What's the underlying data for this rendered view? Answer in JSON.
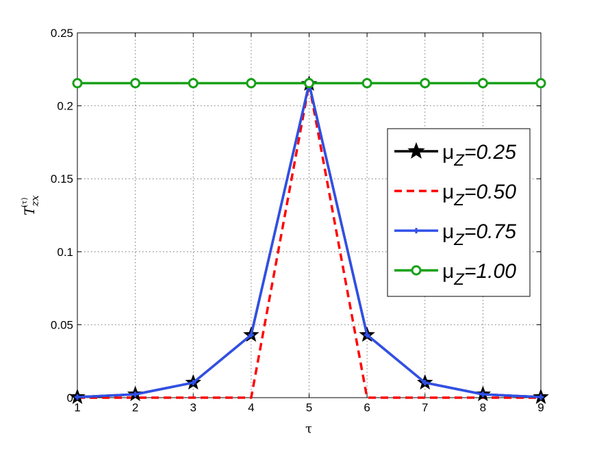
{
  "chart_data": {
    "type": "line",
    "title": "",
    "xlabel": "τ",
    "ylabel_main": "T",
    "ylabel_sub": "zx",
    "ylabel_sup": "(τ)",
    "xlim": [
      1,
      9
    ],
    "ylim": [
      0,
      0.25
    ],
    "grid": true,
    "legend_position": "right",
    "x": [
      1,
      2,
      3,
      4,
      5,
      6,
      7,
      8,
      9
    ],
    "x_tick_labels": [
      "1",
      "2",
      "3",
      "4",
      "5",
      "6",
      "7",
      "8",
      "9"
    ],
    "y_ticks": [
      0,
      0.05,
      0.1,
      0.15,
      0.2,
      0.25
    ],
    "y_tick_labels": [
      "0",
      "0.05",
      "0.1",
      "0.15",
      "0.2",
      "0.25"
    ],
    "series": [
      {
        "name": "0.25",
        "color": "#000000",
        "line_style": "solid",
        "marker": "star",
        "values": [
          0.0004,
          0.0023,
          0.0103,
          0.043,
          0.215,
          0.043,
          0.0103,
          0.0023,
          0.0004
        ]
      },
      {
        "name": "0.50",
        "color": "#ff0000",
        "line_style": "dashed",
        "marker": "none",
        "values": [
          0,
          0,
          0,
          0,
          0.215,
          0,
          0,
          0,
          0
        ]
      },
      {
        "name": "0.75",
        "color": "#3050e8",
        "line_style": "solid",
        "marker": "plus",
        "values": [
          0.0004,
          0.0023,
          0.0103,
          0.043,
          0.215,
          0.043,
          0.0103,
          0.0023,
          0.0004
        ]
      },
      {
        "name": "1.00",
        "color": "#18a018",
        "line_style": "solid",
        "marker": "circle",
        "values": [
          0.2155,
          0.2155,
          0.2155,
          0.2155,
          0.2155,
          0.2155,
          0.2155,
          0.2155,
          0.2155
        ]
      }
    ]
  },
  "legend": {
    "mu": "μ",
    "sub": "Z",
    "values": [
      "=0.25",
      "=0.50",
      "=0.75",
      "=1.00"
    ]
  }
}
